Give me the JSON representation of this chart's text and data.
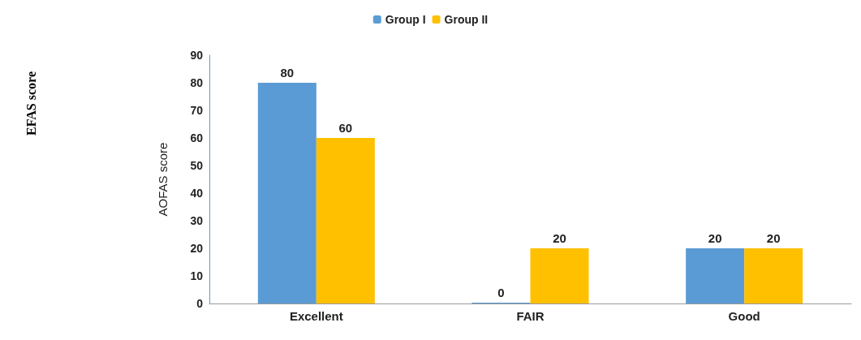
{
  "chart_data": {
    "type": "bar",
    "ylabel": "AOFAS score",
    "annotations": [
      "EFAS score"
    ],
    "categories": [
      "Excellent",
      "FAIR",
      "Good"
    ],
    "series": [
      {
        "name": "Group I",
        "color": "#5b9bd5",
        "values": [
          80,
          0,
          20
        ]
      },
      {
        "name": "Group II",
        "color": "#ffc000",
        "values": [
          60,
          20,
          20
        ]
      }
    ],
    "ylim": [
      0,
      90
    ],
    "yticks": [
      0,
      10,
      20,
      30,
      40,
      50,
      60,
      70,
      80,
      90
    ],
    "grid": false,
    "legend": "top",
    "data_labels": true
  }
}
